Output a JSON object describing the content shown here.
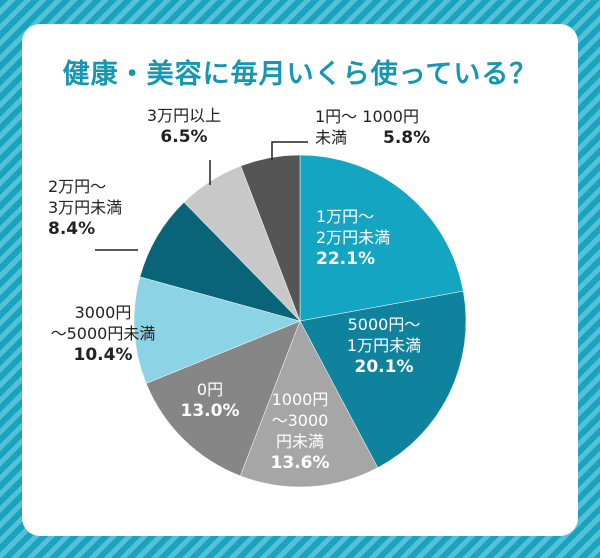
{
  "chart_data": {
    "type": "pie",
    "title": "健康・美容に毎月いくら使っている？",
    "start_angle_deg": 0,
    "direction": "clockwise",
    "slices": [
      {
        "label_lines": [
          "1万円～",
          "2万円未満"
        ],
        "value": 22.1,
        "value_text": "22.1%",
        "color": "#14a5c2",
        "text_color": "#ffffff"
      },
      {
        "label_lines": [
          "5000円～",
          "1万円未満"
        ],
        "value": 20.1,
        "value_text": "20.1%",
        "color": "#0f829d",
        "text_color": "#ffffff"
      },
      {
        "label_lines": [
          "1000円",
          "～3000",
          "円未満"
        ],
        "value": 13.6,
        "value_text": "13.6%",
        "color": "#a6a6a6",
        "text_color": "#ffffff"
      },
      {
        "label_lines": [
          "0円"
        ],
        "value": 13.0,
        "value_text": "13.0%",
        "color": "#868686",
        "text_color": "#ffffff"
      },
      {
        "label_lines": [
          "3000円",
          "～5000円未満"
        ],
        "value": 10.4,
        "value_text": "10.4%",
        "color": "#8dd3e6",
        "text_color": "#222222"
      },
      {
        "label_lines": [
          "2万円～",
          "3万円未満"
        ],
        "value": 8.4,
        "value_text": "8.4%",
        "color": "#0a6479",
        "text_color": "#222222"
      },
      {
        "label_lines": [
          "3万円以上"
        ],
        "value": 6.5,
        "value_text": "6.5%",
        "color": "#c8c8c8",
        "text_color": "#222222"
      },
      {
        "label_lines": [
          "1円～ 1000円",
          "未満"
        ],
        "value": 5.8,
        "value_text": "5.8%",
        "color": "#555555",
        "text_color": "#222222"
      }
    ]
  }
}
